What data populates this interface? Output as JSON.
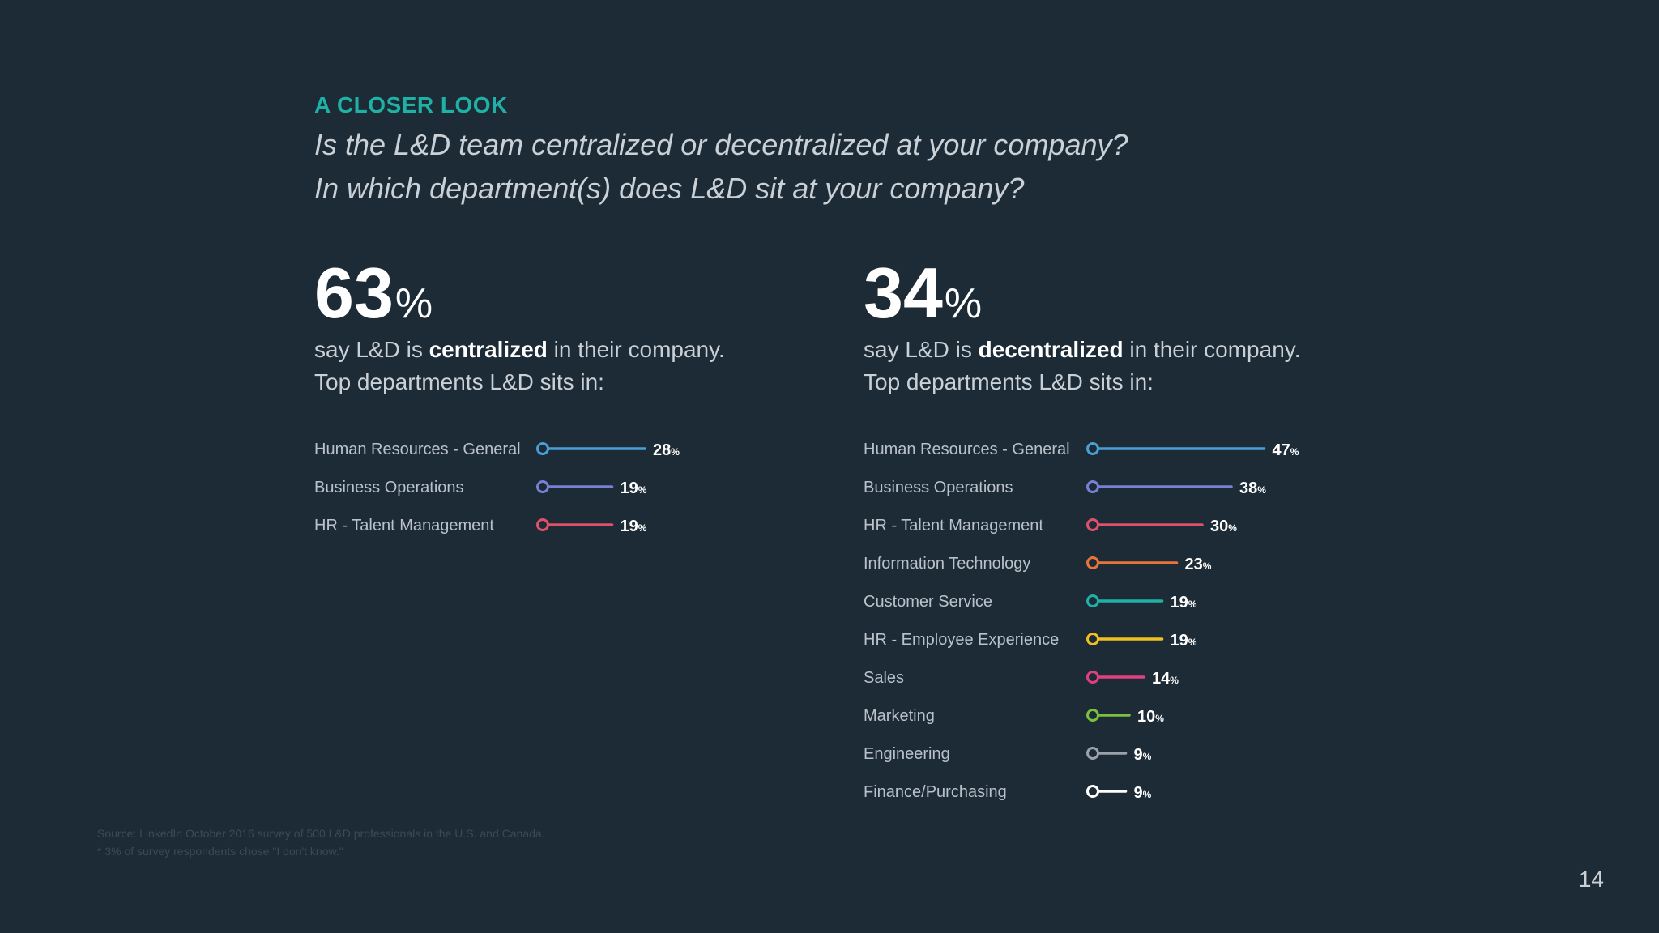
{
  "eyebrow": "A CLOSER LOOK",
  "questions": [
    "Is the L&D team centralized or decentralized at your company?",
    "In which department(s) does L&D sit at your company?"
  ],
  "left": {
    "number": "63",
    "percent": "%",
    "line1_pre": "say L&D is ",
    "line1_em": "centralized",
    "line1_post": " in their company.",
    "line2": "Top departments L&D sits in:"
  },
  "right": {
    "number": "34",
    "percent": "%",
    "line1_pre": "say L&D is ",
    "line1_em": "decentralized",
    "line1_post": " in their company.",
    "line2": "Top departments L&D sits in:"
  },
  "chart_data": [
    {
      "type": "bar",
      "orientation": "horizontal",
      "title": "Top departments L&D sits in (centralized)",
      "unit": "%",
      "categories": [
        "Human Resources - General",
        "Business Operations",
        "HR - Talent Management"
      ],
      "values": [
        28,
        19,
        19
      ],
      "colors": [
        "#4a9fd4",
        "#7a7fd6",
        "#e0506a"
      ]
    },
    {
      "type": "bar",
      "orientation": "horizontal",
      "title": "Top departments L&D sits in (decentralized)",
      "unit": "%",
      "categories": [
        "Human Resources - General",
        "Business Operations",
        "HR - Talent Management",
        "Information Technology",
        "Customer Service",
        "HR - Employee Experience",
        "Sales",
        "Marketing",
        "Engineering",
        "Finance/Purchasing"
      ],
      "values": [
        47,
        38,
        30,
        23,
        19,
        19,
        14,
        10,
        9,
        9
      ],
      "colors": [
        "#4a9fd4",
        "#7a7fd6",
        "#e0506a",
        "#e8743b",
        "#1fb1a5",
        "#f0c020",
        "#e0407f",
        "#7bbf3f",
        "#9aa3ab",
        "#ffffff"
      ]
    }
  ],
  "source_lines": [
    "Source: LinkedIn October 2016 survey of 500 L&D professionals in the U.S. and Canada.",
    "* 3% of survey respondents chose \"I don't know.\""
  ],
  "page_number": "14"
}
